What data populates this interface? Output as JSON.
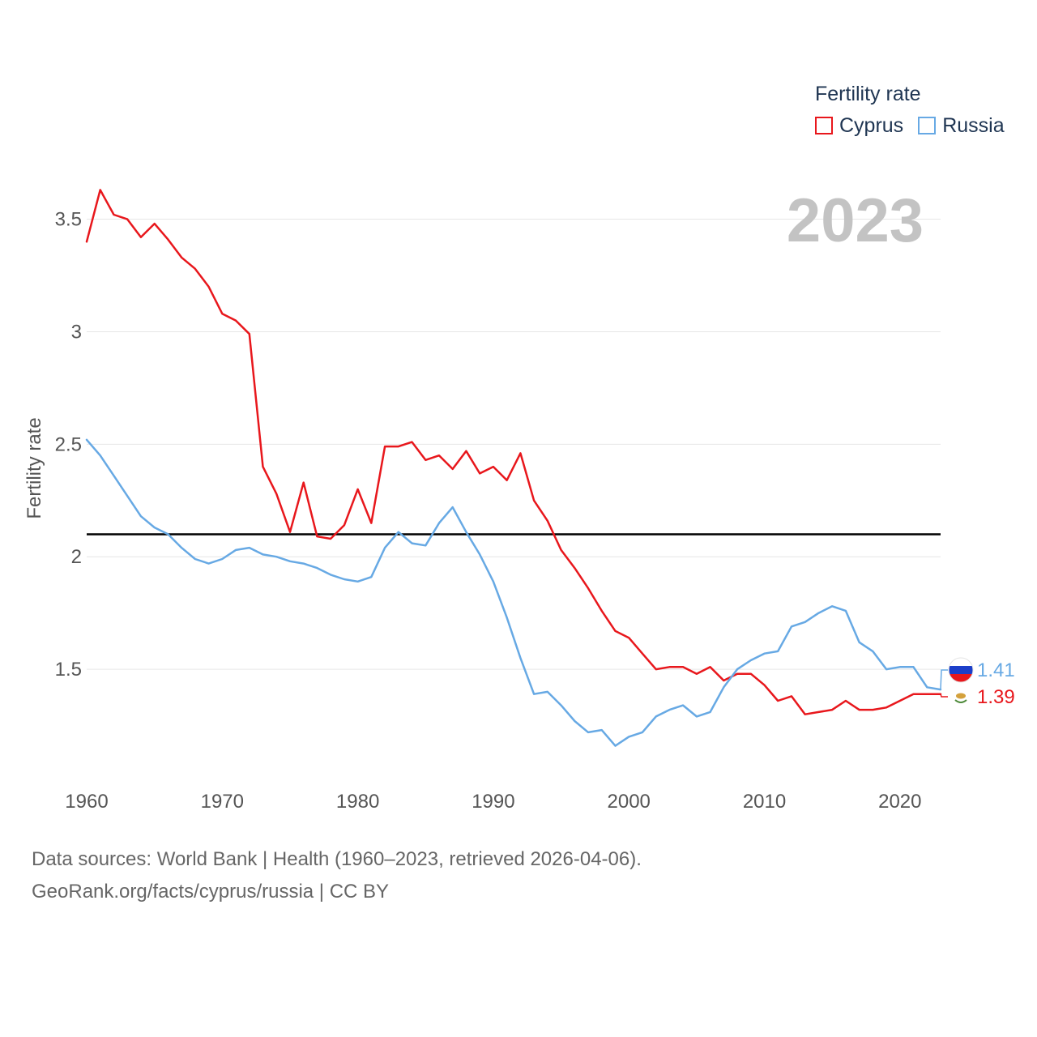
{
  "chart_data": {
    "type": "line",
    "ylabel": "Fertility rate",
    "xlabel": "",
    "year_watermark": "2023",
    "ylim": [
      1.0,
      3.7
    ],
    "xlim": [
      1960,
      2023
    ],
    "x_ticks": [
      "1960",
      "1970",
      "1980",
      "1990",
      "2000",
      "2010",
      "2020"
    ],
    "y_ticks": [
      "1.5",
      "2",
      "2.5",
      "3",
      "3.5"
    ],
    "reference_line": 2.1,
    "legend": {
      "title": "Fertility rate",
      "items": [
        "Cyprus",
        "Russia"
      ]
    },
    "x": [
      1960,
      1961,
      1962,
      1963,
      1964,
      1965,
      1966,
      1967,
      1968,
      1969,
      1970,
      1971,
      1972,
      1973,
      1974,
      1975,
      1976,
      1977,
      1978,
      1979,
      1980,
      1981,
      1982,
      1983,
      1984,
      1985,
      1986,
      1987,
      1988,
      1989,
      1990,
      1991,
      1992,
      1993,
      1994,
      1995,
      1996,
      1997,
      1998,
      1999,
      2000,
      2001,
      2002,
      2003,
      2004,
      2005,
      2006,
      2007,
      2008,
      2009,
      2010,
      2011,
      2012,
      2013,
      2014,
      2015,
      2016,
      2017,
      2018,
      2019,
      2020,
      2021,
      2022,
      2023
    ],
    "series": [
      {
        "name": "Cyprus",
        "color": "#e8171c",
        "end_label": "1.39",
        "flag": "cyprus-flag",
        "values": [
          3.4,
          3.63,
          3.52,
          3.5,
          3.42,
          3.48,
          3.41,
          3.33,
          3.28,
          3.2,
          3.08,
          3.05,
          2.99,
          2.4,
          2.28,
          2.11,
          2.33,
          2.09,
          2.08,
          2.14,
          2.3,
          2.15,
          2.49,
          2.49,
          2.51,
          2.43,
          2.45,
          2.39,
          2.47,
          2.37,
          2.4,
          2.34,
          2.46,
          2.25,
          2.16,
          2.03,
          1.95,
          1.86,
          1.76,
          1.67,
          1.64,
          1.57,
          1.5,
          1.51,
          1.51,
          1.48,
          1.51,
          1.45,
          1.48,
          1.48,
          1.43,
          1.36,
          1.38,
          1.3,
          1.31,
          1.32,
          1.36,
          1.32,
          1.32,
          1.33,
          1.36,
          1.39,
          1.39,
          1.39
        ]
      },
      {
        "name": "Russia",
        "color": "#67a9e4",
        "end_label": "1.41",
        "flag": "russia-flag",
        "values": [
          2.52,
          2.45,
          2.36,
          2.27,
          2.18,
          2.13,
          2.1,
          2.04,
          1.99,
          1.97,
          1.99,
          2.03,
          2.04,
          2.01,
          2.0,
          1.98,
          1.97,
          1.95,
          1.92,
          1.9,
          1.89,
          1.91,
          2.04,
          2.11,
          2.06,
          2.05,
          2.15,
          2.22,
          2.11,
          2.01,
          1.89,
          1.73,
          1.55,
          1.39,
          1.4,
          1.34,
          1.27,
          1.22,
          1.23,
          1.16,
          1.2,
          1.22,
          1.29,
          1.32,
          1.34,
          1.29,
          1.31,
          1.42,
          1.5,
          1.54,
          1.57,
          1.58,
          1.69,
          1.71,
          1.75,
          1.78,
          1.76,
          1.62,
          1.58,
          1.5,
          1.51,
          1.51,
          1.42,
          1.41
        ]
      }
    ]
  },
  "footer": {
    "line1": "Data sources: World Bank | Health (1960–2023, retrieved 2026-04-06).",
    "line2": "GeoRank.org/facts/cyprus/russia | CC BY"
  }
}
